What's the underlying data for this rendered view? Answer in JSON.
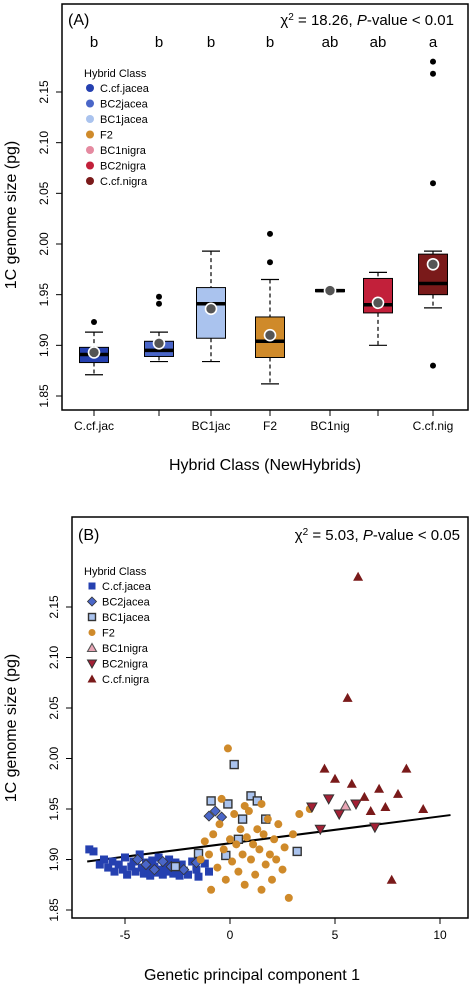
{
  "chart_data": [
    {
      "type": "box",
      "panel_label": "(A)",
      "stat_prefix": "χ",
      "stat_sup": "2",
      "stat_value": " = 18.26, ",
      "stat_p": "P",
      "stat_tail": "-value < 0.01",
      "xlabel": "Hybrid Class (NewHybrids)",
      "ylabel": "1C genome size (pg)",
      "ylim": [
        1.835,
        2.2
      ],
      "yticks": [
        "1.85",
        "1.90",
        "1.95",
        "2.00",
        "2.05",
        "2.10",
        "2.15"
      ],
      "x_tick_labels": [
        "C.cf.jac",
        "",
        "BC1jac",
        "F2",
        "BC1nig",
        "",
        "C.cf.nig"
      ],
      "legend": {
        "title": "Hybrid Class",
        "placement": "top-left",
        "entries": [
          "C.cf.jacea",
          "BC2jacea",
          "BC1jacea",
          "F2",
          "BC1nigra",
          "BC2nigra",
          "C.cf.nigra"
        ]
      },
      "groups": [
        {
          "name": "C.cf.jacea",
          "letter": "b",
          "color": "#2540b0",
          "whisker_low": 1.871,
          "q1": 1.883,
          "median": 1.891,
          "q3": 1.898,
          "whisker_high": 1.913,
          "mean": 1.893,
          "outliers": [
            1.923
          ]
        },
        {
          "name": "BC2jacea",
          "letter": "b",
          "color": "#4a66c8",
          "whisker_low": 1.884,
          "q1": 1.889,
          "median": 1.895,
          "q3": 1.904,
          "whisker_high": 1.913,
          "mean": 1.902,
          "outliers": [
            1.941,
            1.948
          ]
        },
        {
          "name": "BC1jacea",
          "letter": "b",
          "color": "#aac3ee",
          "whisker_low": 1.884,
          "q1": 1.907,
          "median": 1.941,
          "q3": 1.957,
          "whisker_high": 1.993,
          "mean": 1.936,
          "outliers": []
        },
        {
          "name": "F2",
          "letter": "b",
          "color": "#cf8a2a",
          "whisker_low": 1.862,
          "q1": 1.888,
          "median": 1.904,
          "q3": 1.928,
          "whisker_high": 1.965,
          "mean": 1.91,
          "outliers": [
            2.01,
            1.982
          ]
        },
        {
          "name": "BC1nigra",
          "letter": "ab",
          "color": "#e58aa0",
          "whisker_low": 1.953,
          "q1": 1.953,
          "median": 1.954,
          "q3": 1.955,
          "whisker_high": 1.955,
          "mean": 1.954,
          "outliers": []
        },
        {
          "name": "BC2nigra",
          "letter": "ab",
          "color": "#c2203a",
          "whisker_low": 1.9,
          "q1": 1.932,
          "median": 1.94,
          "q3": 1.966,
          "whisker_high": 1.972,
          "mean": 1.942,
          "outliers": []
        },
        {
          "name": "C.cf.nigra",
          "letter": "a",
          "color": "#7a1a1a",
          "whisker_low": 1.937,
          "q1": 1.95,
          "median": 1.961,
          "q3": 1.99,
          "whisker_high": 1.993,
          "mean": 1.98,
          "outliers": [
            2.18,
            2.168,
            2.06,
            1.88
          ]
        }
      ]
    },
    {
      "type": "scatter",
      "panel_label": "(B)",
      "stat_prefix": "χ",
      "stat_sup": "2",
      "stat_value": " = 5.03, ",
      "stat_p": "P",
      "stat_tail": "-value < 0.05",
      "xlabel": "Genetic principal component 1",
      "ylabel": "1C genome size (pg)",
      "xlim": [
        -7.5,
        11
      ],
      "ylim": [
        1.835,
        2.2
      ],
      "xticks": [
        "-5",
        "0",
        "5",
        "10"
      ],
      "yticks": [
        "1.85",
        "1.90",
        "1.95",
        "2.00",
        "2.05",
        "2.10",
        "2.15"
      ],
      "regression_line": {
        "x": [
          -6.8,
          10.5
        ],
        "y": [
          1.898,
          1.944
        ]
      },
      "legend": {
        "title": "Hybrid Class",
        "placement": "top-left",
        "entries": [
          "C.cf.jacea",
          "BC2jacea",
          "BC1jacea",
          "F2",
          "BC1nigra",
          "BC2nigra",
          "C.cf.nigra"
        ]
      },
      "series": [
        {
          "name": "C.cf.jacea",
          "marker": "square-filled",
          "color": "#2540b0",
          "points": [
            [
              -6.7,
              1.91
            ],
            [
              -6.5,
              1.908
            ],
            [
              -6.2,
              1.895
            ],
            [
              -6.0,
              1.9
            ],
            [
              -5.8,
              1.892
            ],
            [
              -5.6,
              1.898
            ],
            [
              -5.5,
              1.888
            ],
            [
              -5.3,
              1.895
            ],
            [
              -5.1,
              1.89
            ],
            [
              -5.0,
              1.902
            ],
            [
              -4.9,
              1.885
            ],
            [
              -4.7,
              1.893
            ],
            [
              -4.6,
              1.898
            ],
            [
              -4.5,
              1.888
            ],
            [
              -4.3,
              1.905
            ],
            [
              -4.2,
              1.892
            ],
            [
              -4.1,
              1.886
            ],
            [
              -4.0,
              1.897
            ],
            [
              -3.9,
              1.89
            ],
            [
              -3.8,
              1.884
            ],
            [
              -3.7,
              1.899
            ],
            [
              -3.6,
              1.893
            ],
            [
              -3.5,
              1.887
            ],
            [
              -3.4,
              1.902
            ],
            [
              -3.3,
              1.89
            ],
            [
              -3.2,
              1.885
            ],
            [
              -3.1,
              1.895
            ],
            [
              -3.0,
              1.888
            ],
            [
              -2.9,
              1.9
            ],
            [
              -2.8,
              1.892
            ],
            [
              -2.7,
              1.886
            ],
            [
              -2.6,
              1.897
            ],
            [
              -2.5,
              1.89
            ],
            [
              -2.4,
              1.884
            ],
            [
              -2.3,
              1.895
            ],
            [
              -2.2,
              1.889
            ],
            [
              -2.0,
              1.885
            ],
            [
              -1.8,
              1.898
            ],
            [
              -1.6,
              1.89
            ],
            [
              -1.5,
              1.883
            ],
            [
              -1.2,
              1.896
            ],
            [
              -1.0,
              1.888
            ]
          ]
        },
        {
          "name": "BC2jacea",
          "marker": "diamond-filled",
          "color": "#4a66c8",
          "points": [
            [
              -4.4,
              1.9
            ],
            [
              -4.0,
              1.895
            ],
            [
              -3.6,
              1.89
            ],
            [
              -3.2,
              1.898
            ],
            [
              -2.8,
              1.893
            ],
            [
              -2.2,
              1.89
            ],
            [
              -1.6,
              1.897
            ],
            [
              -1.0,
              1.943
            ],
            [
              -0.7,
              1.948
            ],
            [
              -0.4,
              1.942
            ]
          ]
        },
        {
          "name": "BC1jacea",
          "marker": "square-open",
          "color": "#7fa3e0",
          "points": [
            [
              -2.6,
              1.893
            ],
            [
              -1.5,
              1.906
            ],
            [
              -0.9,
              1.958
            ],
            [
              -0.2,
              1.904
            ],
            [
              0.2,
              1.994
            ],
            [
              0.6,
              1.94
            ],
            [
              1.0,
              1.963
            ],
            [
              1.3,
              1.958
            ],
            [
              -0.1,
              1.955
            ],
            [
              0.4,
              1.92
            ],
            [
              1.7,
              1.94
            ],
            [
              3.2,
              1.908
            ]
          ]
        },
        {
          "name": "F2",
          "marker": "circle-filled",
          "color": "#cf8a2a",
          "points": [
            [
              -1.4,
              1.9
            ],
            [
              -1.2,
              1.918
            ],
            [
              -1.0,
              1.905
            ],
            [
              -0.8,
              1.925
            ],
            [
              -0.6,
              1.892
            ],
            [
              -0.5,
              1.935
            ],
            [
              -0.3,
              1.91
            ],
            [
              -0.2,
              1.88
            ],
            [
              -0.1,
              2.01
            ],
            [
              0.0,
              1.92
            ],
            [
              0.1,
              1.898
            ],
            [
              0.2,
              1.945
            ],
            [
              0.3,
              1.915
            ],
            [
              0.4,
              1.888
            ],
            [
              0.5,
              1.93
            ],
            [
              0.6,
              1.905
            ],
            [
              0.7,
              1.875
            ],
            [
              0.8,
              1.922
            ],
            [
              0.9,
              1.948
            ],
            [
              1.0,
              1.9
            ],
            [
              1.1,
              1.915
            ],
            [
              1.2,
              1.885
            ],
            [
              1.3,
              1.93
            ],
            [
              1.4,
              1.91
            ],
            [
              1.5,
              1.87
            ],
            [
              1.6,
              1.925
            ],
            [
              1.7,
              1.895
            ],
            [
              1.8,
              1.94
            ],
            [
              1.9,
              1.905
            ],
            [
              2.0,
              1.88
            ],
            [
              2.1,
              1.92
            ],
            [
              2.2,
              1.9
            ],
            [
              2.3,
              1.935
            ],
            [
              2.5,
              1.89
            ],
            [
              2.6,
              1.912
            ],
            [
              2.8,
              1.862
            ],
            [
              3.0,
              1.925
            ],
            [
              3.3,
              1.945
            ],
            [
              3.8,
              1.95
            ],
            [
              -0.9,
              1.87
            ],
            [
              -0.4,
              1.96
            ],
            [
              0.7,
              1.953
            ],
            [
              1.5,
              1.955
            ]
          ]
        },
        {
          "name": "BC1nigra",
          "marker": "triangle-open",
          "color": "#c2738a",
          "points": [
            [
              5.5,
              1.953
            ]
          ]
        },
        {
          "name": "BC2nigra",
          "marker": "triangle-down-filled",
          "color": "#a32035",
          "points": [
            [
              3.9,
              1.952
            ],
            [
              4.3,
              1.93
            ],
            [
              4.7,
              1.96
            ],
            [
              5.2,
              1.945
            ],
            [
              6.0,
              1.955
            ],
            [
              6.9,
              1.932
            ]
          ]
        },
        {
          "name": "C.cf.nigra",
          "marker": "triangle-filled",
          "color": "#7a1a1a",
          "points": [
            [
              4.5,
              1.99
            ],
            [
              5.6,
              2.06
            ],
            [
              5.8,
              1.975
            ],
            [
              6.1,
              2.18
            ],
            [
              6.4,
              1.962
            ],
            [
              7.1,
              1.97
            ],
            [
              7.4,
              1.952
            ],
            [
              7.7,
              1.88
            ],
            [
              8.0,
              1.965
            ],
            [
              8.4,
              1.99
            ],
            [
              9.2,
              1.95
            ],
            [
              5.0,
              1.98
            ],
            [
              6.7,
              1.948
            ]
          ]
        }
      ]
    }
  ]
}
